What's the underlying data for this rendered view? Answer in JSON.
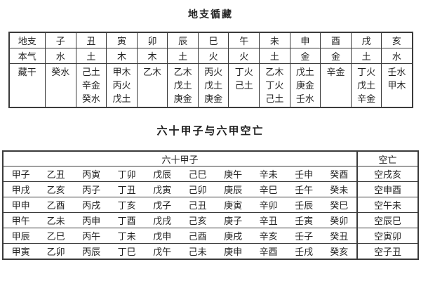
{
  "titles": {
    "hidden_stems": "地支循藏",
    "jiazi": "六十甲子与六甲空亡"
  },
  "hidden_stems_table": {
    "row_labels": [
      "地支",
      "本气",
      "藏干"
    ],
    "branches": [
      "子",
      "丑",
      "寅",
      "卯",
      "辰",
      "巳",
      "午",
      "未",
      "申",
      "酉",
      "戌",
      "亥"
    ],
    "benqi": [
      "水",
      "土",
      "木",
      "木",
      "土",
      "火",
      "火",
      "土",
      "金",
      "金",
      "土",
      "水"
    ],
    "canggan": [
      [
        "癸水"
      ],
      [
        "己土",
        "辛金",
        "癸水"
      ],
      [
        "甲木",
        "丙火",
        "戊土"
      ],
      [
        "乙木"
      ],
      [
        "乙木",
        "戊土",
        "庚金"
      ],
      [
        "丙火",
        "戊土",
        "庚金"
      ],
      [
        "丁火",
        "己土"
      ],
      [
        "乙木",
        "丁火",
        "己土"
      ],
      [
        "戊土",
        "庚金",
        "壬水"
      ],
      [
        "辛金"
      ],
      [
        "丁火",
        "戊土",
        "辛金"
      ],
      [
        "壬水",
        "甲木"
      ]
    ]
  },
  "jiazi_table": {
    "header_left": "六十甲子",
    "header_right": "空亡",
    "rows": [
      {
        "ganzhi": [
          "甲子",
          "乙丑",
          "丙寅",
          "丁卯",
          "戊辰",
          "己巳",
          "庚午",
          "辛未",
          "壬申",
          "癸酉"
        ],
        "kongwang": "空戌亥"
      },
      {
        "ganzhi": [
          "甲戌",
          "乙亥",
          "丙子",
          "丁丑",
          "戊寅",
          "己卯",
          "庚辰",
          "辛巳",
          "壬午",
          "癸未"
        ],
        "kongwang": "空申酉"
      },
      {
        "ganzhi": [
          "甲申",
          "乙酉",
          "丙戌",
          "丁亥",
          "戊子",
          "己丑",
          "庚寅",
          "辛卯",
          "壬辰",
          "癸巳"
        ],
        "kongwang": "空午未"
      },
      {
        "ganzhi": [
          "甲午",
          "乙未",
          "丙申",
          "丁酉",
          "戊戌",
          "己亥",
          "庚子",
          "辛丑",
          "壬寅",
          "癸卯"
        ],
        "kongwang": "空辰巳"
      },
      {
        "ganzhi": [
          "甲辰",
          "乙巳",
          "丙午",
          "丁未",
          "戊申",
          "己酉",
          "庚戌",
          "辛亥",
          "壬子",
          "癸丑"
        ],
        "kongwang": "空寅卯"
      },
      {
        "ganzhi": [
          "甲寅",
          "乙卯",
          "丙辰",
          "丁巳",
          "戊午",
          "己未",
          "庚申",
          "辛酉",
          "壬戌",
          "癸亥"
        ],
        "kongwang": "空子丑"
      }
    ]
  },
  "colors": {
    "background": "#ffffff",
    "text": "#222222",
    "border": "#3b3b3b"
  }
}
